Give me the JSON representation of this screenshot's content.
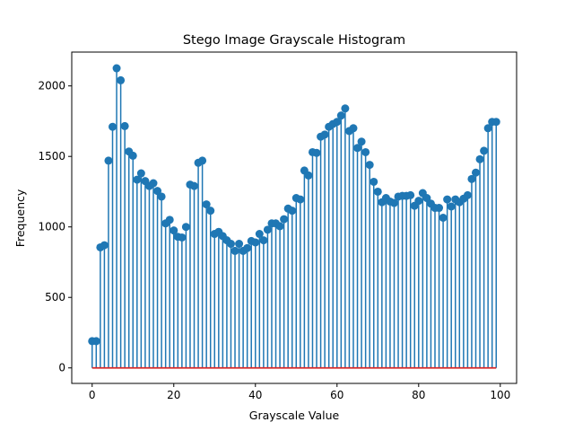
{
  "chart_data": {
    "type": "stem",
    "title": "Stego Image Grayscale Histogram",
    "xlabel": "Grayscale Value",
    "ylabel": "Frequency",
    "xlim": [
      -5,
      104
    ],
    "ylim": [
      -110,
      2240
    ],
    "xticks": [
      0,
      20,
      40,
      60,
      80,
      100
    ],
    "yticks": [
      0,
      500,
      1000,
      1500,
      2000
    ],
    "x": [
      0,
      1,
      2,
      3,
      4,
      5,
      6,
      7,
      8,
      9,
      10,
      11,
      12,
      13,
      14,
      15,
      16,
      17,
      18,
      19,
      20,
      21,
      22,
      23,
      24,
      25,
      26,
      27,
      28,
      29,
      30,
      31,
      32,
      33,
      34,
      35,
      36,
      37,
      38,
      39,
      40,
      41,
      42,
      43,
      44,
      45,
      46,
      47,
      48,
      49,
      50,
      51,
      52,
      53,
      54,
      55,
      56,
      57,
      58,
      59,
      60,
      61,
      62,
      63,
      64,
      65,
      66,
      67,
      68,
      69,
      70,
      71,
      72,
      73,
      74,
      75,
      76,
      77,
      78,
      79,
      80,
      81,
      82,
      83,
      84,
      85,
      86,
      87,
      88,
      89,
      90,
      91,
      92,
      93,
      94,
      95,
      96,
      97,
      98,
      99
    ],
    "values": [
      190,
      190,
      855,
      870,
      1470,
      1710,
      2125,
      2040,
      1715,
      1535,
      1505,
      1335,
      1380,
      1325,
      1290,
      1310,
      1255,
      1215,
      1025,
      1050,
      975,
      930,
      925,
      1000,
      1300,
      1290,
      1455,
      1470,
      1160,
      1115,
      950,
      965,
      935,
      905,
      880,
      830,
      880,
      830,
      850,
      900,
      890,
      950,
      905,
      980,
      1025,
      1025,
      1005,
      1055,
      1130,
      1115,
      1205,
      1195,
      1400,
      1365,
      1530,
      1525,
      1640,
      1655,
      1710,
      1730,
      1745,
      1790,
      1840,
      1680,
      1700,
      1560,
      1605,
      1530,
      1440,
      1320,
      1250,
      1175,
      1205,
      1180,
      1170,
      1215,
      1220,
      1220,
      1225,
      1150,
      1185,
      1240,
      1205,
      1165,
      1135,
      1135,
      1065,
      1195,
      1145,
      1195,
      1175,
      1200,
      1225,
      1340,
      1385,
      1480,
      1540,
      1700,
      1745,
      1745
    ],
    "colors": {
      "stem": "#1f77b4",
      "marker": "#1f77b4",
      "baseline": "#d62728",
      "axes": "#000000"
    }
  }
}
